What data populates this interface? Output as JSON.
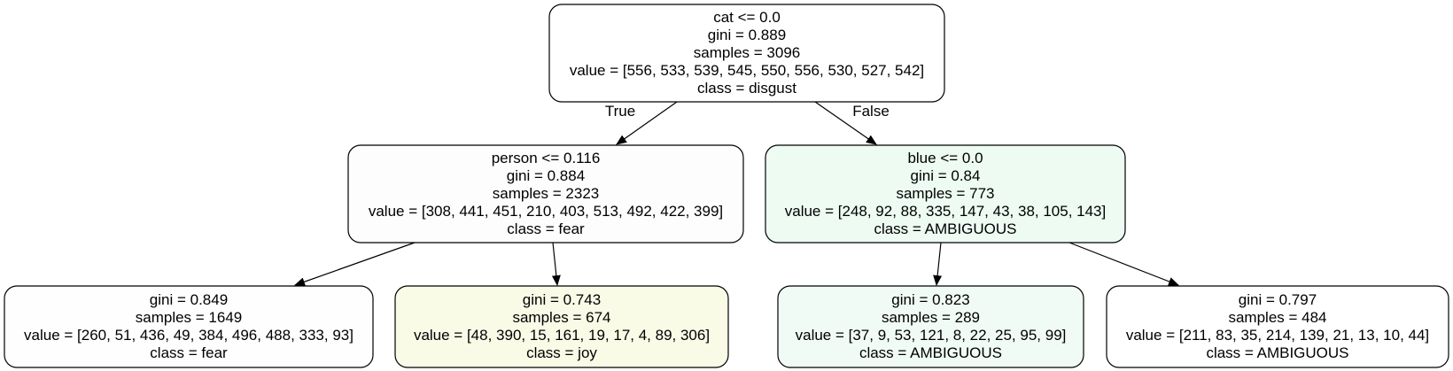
{
  "tree": {
    "nodes": [
      {
        "id": "root",
        "lines": [
          "cat <= 0.0",
          "gini = 0.889",
          "samples = 3096",
          "value = [556, 533, 539, 545, 550, 556, 530, 527, 542]",
          "class = disgust"
        ],
        "fill": "#ffffff"
      },
      {
        "id": "left",
        "lines": [
          "person <= 0.116",
          "gini = 0.884",
          "samples = 2323",
          "value = [308, 441, 451, 210, 403, 513, 492, 422, 399]",
          "class = fear"
        ],
        "fill": "#fdfdfd"
      },
      {
        "id": "right",
        "lines": [
          "blue <= 0.0",
          "gini = 0.84",
          "samples = 773",
          "value = [248, 92, 88, 335, 147, 43, 38, 105, 143]",
          "class = AMBIGUOUS"
        ],
        "fill": "#edfbf3"
      },
      {
        "id": "left-left",
        "lines": [
          "gini = 0.849",
          "samples = 1649",
          "value = [260, 51, 436, 49, 384, 496, 488, 333, 93]",
          "class = fear"
        ],
        "fill": "#fefefe"
      },
      {
        "id": "left-right",
        "lines": [
          "gini = 0.743",
          "samples = 674",
          "value = [48, 390, 15, 161, 19, 17, 4, 89, 306]",
          "class = joy"
        ],
        "fill": "#f9fbe7"
      },
      {
        "id": "right-left",
        "lines": [
          "gini = 0.823",
          "samples = 289",
          "value = [37, 9, 53, 121, 8, 22, 25, 95, 99]",
          "class = AMBIGUOUS"
        ],
        "fill": "#f1fbf5"
      },
      {
        "id": "right-right",
        "lines": [
          "gini = 0.797",
          "samples = 484",
          "value = [211, 83, 35, 214, 139, 21, 13, 10, 44]",
          "class = AMBIGUOUS"
        ],
        "fill": "#ffffff"
      }
    ],
    "edges": [
      {
        "from": "root",
        "to": "left",
        "label": "True"
      },
      {
        "from": "root",
        "to": "right",
        "label": "False"
      },
      {
        "from": "left",
        "to": "left-left",
        "label": ""
      },
      {
        "from": "left",
        "to": "left-right",
        "label": ""
      },
      {
        "from": "right",
        "to": "right-left",
        "label": ""
      },
      {
        "from": "right",
        "to": "right-right",
        "label": ""
      }
    ]
  }
}
